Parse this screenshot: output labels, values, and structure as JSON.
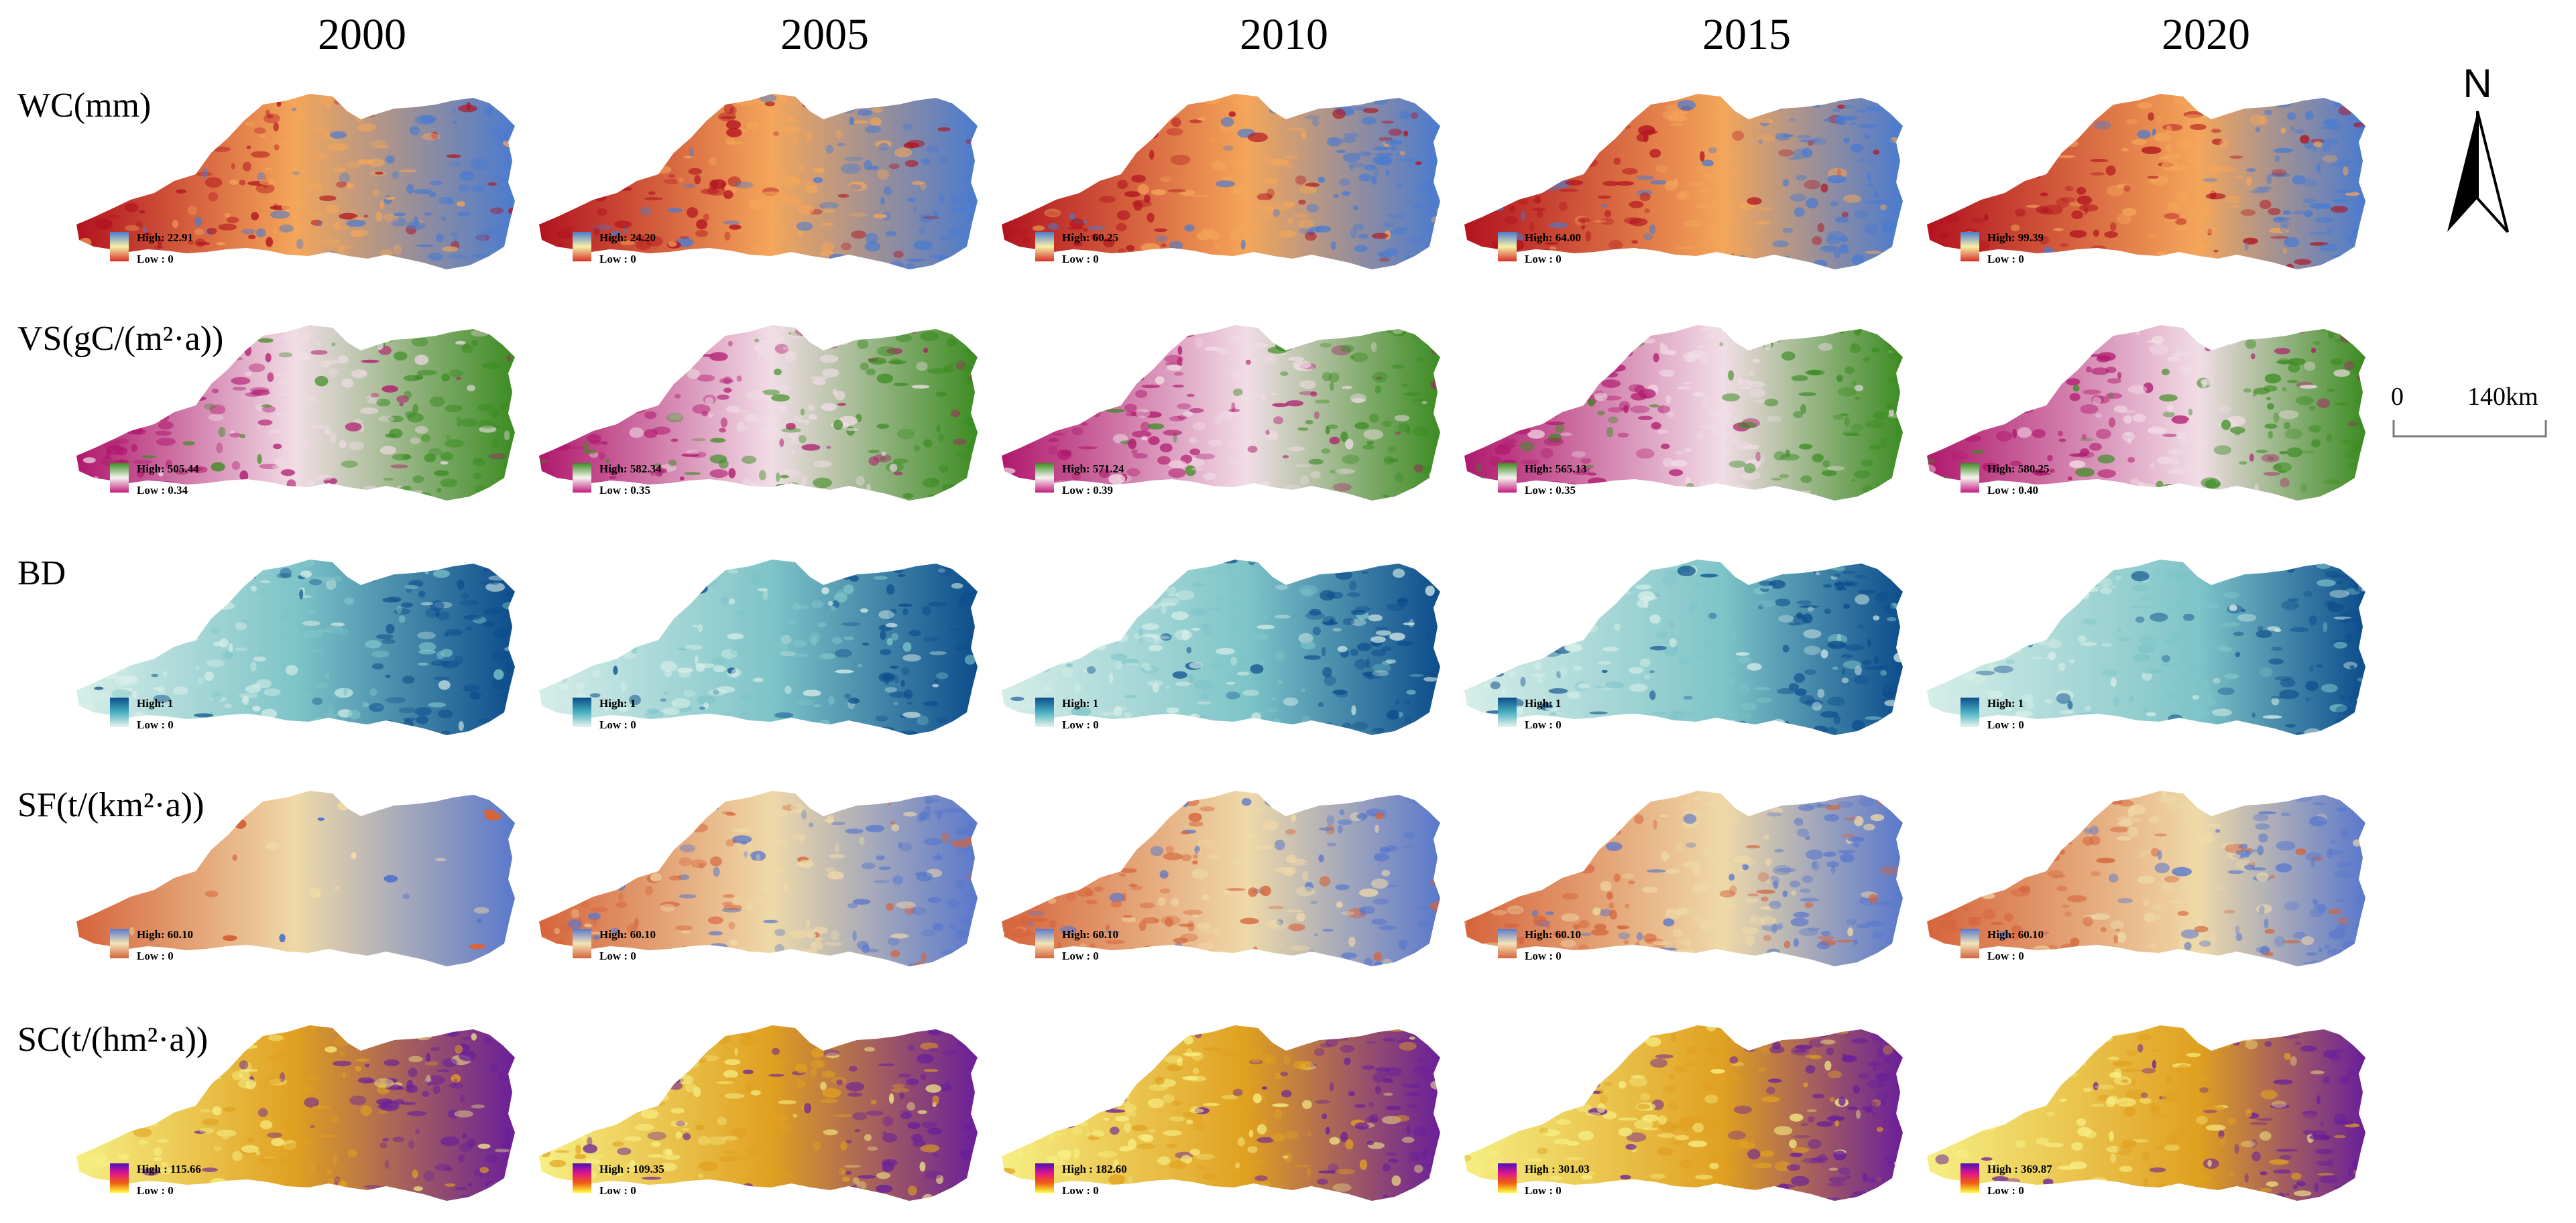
{
  "years": [
    "2000",
    "2005",
    "2010",
    "2015",
    "2020"
  ],
  "north_label": "N",
  "scale": {
    "start": "0",
    "end": "140km"
  },
  "rows": [
    {
      "key": "wc",
      "label": "WC(mm)",
      "low_color": "#b2131f",
      "mid_color": "#f4a65a",
      "high_color": "#4a7bd0",
      "legend_gradient": [
        "#4a7bd0",
        "#f7f0a8",
        "#d73027"
      ],
      "legends": [
        {
          "high": "High: 22.91",
          "low": "Low : 0"
        },
        {
          "high": "High: 24.20",
          "low": "Low : 0"
        },
        {
          "high": "High: 60.25",
          "low": "Low : 0"
        },
        {
          "high": "High: 64.00",
          "low": "Low : 0"
        },
        {
          "high": "High: 99.39",
          "low": "Low : 0"
        }
      ]
    },
    {
      "key": "vs",
      "label": "VS(gC/(m²·a))",
      "low_color": "#b0186d",
      "mid_color": "#f1dde6",
      "high_color": "#3c8c22",
      "legend_gradient": [
        "#3c8c22",
        "#f4f4f0",
        "#c51b7d"
      ],
      "legends": [
        {
          "high": "High: 505.44",
          "low": "Low : 0.34"
        },
        {
          "high": "High: 582.34",
          "low": "Low : 0.35"
        },
        {
          "high": "High: 571.24",
          "low": "Low : 0.39"
        },
        {
          "high": "High: 565.13",
          "low": "Low : 0.35"
        },
        {
          "high": "High: 580.25",
          "low": "Low : 0.40"
        }
      ]
    },
    {
      "key": "bd",
      "label": "BD",
      "low_color": "#d7eee8",
      "mid_color": "#7ec4c8",
      "high_color": "#0d4d8c",
      "legend_gradient": [
        "#0d4d8c",
        "#4ab0c0",
        "#e6f5f0"
      ],
      "legends": [
        {
          "high": "High: 1",
          "low": "Low : 0"
        },
        {
          "high": "High: 1",
          "low": "Low : 0"
        },
        {
          "high": "High: 1",
          "low": "Low : 0"
        },
        {
          "high": "High: 1",
          "low": "Low : 0"
        },
        {
          "high": "High: 1",
          "low": "Low : 0"
        }
      ]
    },
    {
      "key": "sf",
      "label": "SF(t/(km²·a))",
      "low_color": "#d6643c",
      "mid_color": "#efd9a8",
      "high_color": "#5a78cc",
      "legend_gradient": [
        "#5a78cc",
        "#f3e3b8",
        "#d6643c"
      ],
      "legends": [
        {
          "high": "High: 60.10",
          "low": "Low : 0"
        },
        {
          "high": "High: 60.10",
          "low": "Low : 0"
        },
        {
          "high": "High: 60.10",
          "low": "Low : 0"
        },
        {
          "high": "High: 60.10",
          "low": "Low : 0"
        },
        {
          "high": "High: 60.10",
          "low": "Low : 0"
        }
      ]
    },
    {
      "key": "sc",
      "label": "SC(t/(hm²·a))",
      "low_color": "#f6ef84",
      "mid_color": "#e0a020",
      "high_color": "#6a1f9a",
      "legend_gradient": [
        "#4b12b8",
        "#e0148c",
        "#f06010",
        "#ffff40"
      ],
      "legends": [
        {
          "high": "High : 115.66",
          "low": "Low : 0"
        },
        {
          "high": "High : 109.35",
          "low": "Low : 0"
        },
        {
          "high": "High : 182.60",
          "low": "Low : 0"
        },
        {
          "high": "High : 301.03",
          "low": "Low : 0"
        },
        {
          "high": "High : 369.87",
          "low": "Low : 0"
        }
      ]
    }
  ]
}
